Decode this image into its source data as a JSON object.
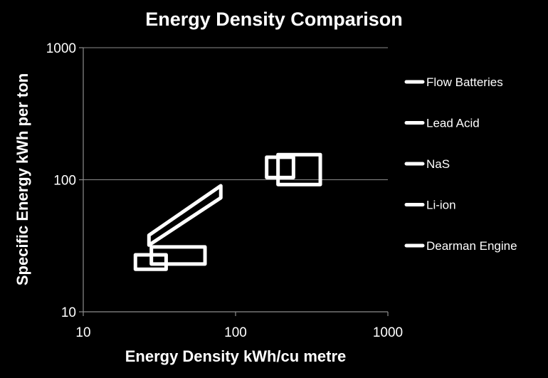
{
  "chart_data": {
    "type": "scatter",
    "title": "Energy Density Comparison",
    "xlabel": "Energy Density kWh/cu metre",
    "ylabel": "Specific Energy kWh per ton",
    "xscale": "log",
    "yscale": "log",
    "xlim": [
      10,
      1000
    ],
    "ylim": [
      10,
      1000
    ],
    "xticks": [
      "10",
      "100",
      "1000"
    ],
    "yticks": [
      "10",
      "100",
      "1000"
    ],
    "grid": "horizontal",
    "legend_position": "right",
    "series": [
      {
        "name": "Flow Batteries",
        "shape": "rect",
        "x": [
          22,
          35
        ],
        "y": [
          21,
          27
        ]
      },
      {
        "name": "Lead Acid",
        "shape": "rect",
        "x": [
          28,
          63
        ],
        "y": [
          23,
          31
        ]
      },
      {
        "name": "NaS",
        "shape": "rect",
        "x": [
          160,
          240
        ],
        "y": [
          104,
          148
        ]
      },
      {
        "name": "Li-ion",
        "shape": "rect",
        "x": [
          190,
          360
        ],
        "y": [
          92,
          155
        ]
      },
      {
        "name": "Dearman Engine",
        "shape": "polygon",
        "points": [
          [
            27,
            32
          ],
          [
            27,
            38
          ],
          [
            80,
            90
          ],
          [
            80,
            73
          ]
        ]
      }
    ]
  }
}
